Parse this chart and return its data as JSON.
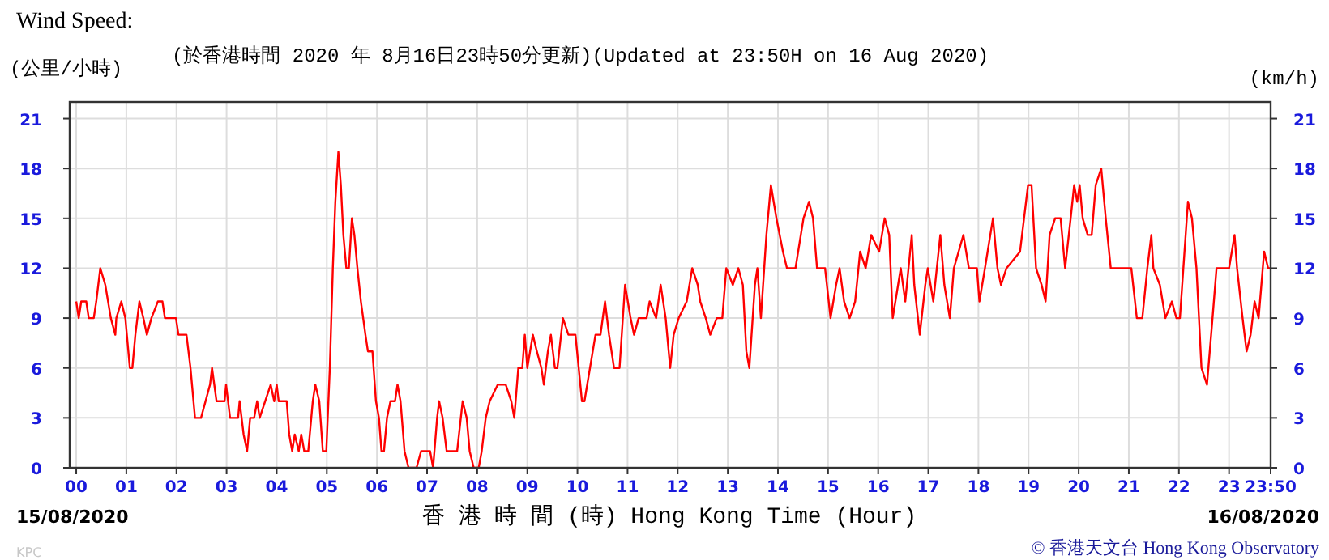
{
  "chart_data": {
    "type": "line",
    "title": "Wind Speed:",
    "subtitle": "(於香港時間 2020 年 8月16日23時50分更新)(Updated at 23:50H on 16 Aug 2020)",
    "ylabel": "(公里/小時)",
    "y2label": "(km/h)",
    "xlabel": "香 港 時 間 (時) Hong Kong Time (Hour)",
    "annotations": [
      "15/08/2020",
      "16/08/2020",
      "© 香港天文台 Hong Kong Observatory",
      "KPC"
    ],
    "xlim": [
      -0.13,
      23.83
    ],
    "ylim": [
      0,
      22
    ],
    "y2lim": [
      0,
      22
    ],
    "xticks": [
      {
        "value": 0,
        "label": "00"
      },
      {
        "value": 1,
        "label": "01"
      },
      {
        "value": 2,
        "label": "02"
      },
      {
        "value": 3,
        "label": "03"
      },
      {
        "value": 4,
        "label": "04"
      },
      {
        "value": 5,
        "label": "05"
      },
      {
        "value": 6,
        "label": "06"
      },
      {
        "value": 7,
        "label": "07"
      },
      {
        "value": 8,
        "label": "08"
      },
      {
        "value": 9,
        "label": "09"
      },
      10,
      11,
      12,
      13,
      14,
      15,
      16,
      17,
      18,
      19,
      20,
      21,
      22,
      23,
      {
        "value": 23.83,
        "label": "23:50"
      }
    ],
    "yticks": [
      0,
      3,
      6,
      9,
      12,
      15,
      18,
      21
    ],
    "y2ticks": [
      0,
      3,
      6,
      9,
      12,
      15,
      18,
      21
    ],
    "grid": true,
    "marker": "none",
    "line_style": "solid",
    "series": [
      {
        "color": "#ff0000",
        "x": [
          0,
          0.05,
          0.1,
          0.2,
          0.25,
          0.35,
          0.4,
          0.48,
          0.58,
          0.69,
          0.78,
          0.8,
          0.9,
          0.98,
          1.07,
          1.12,
          1.18,
          1.26,
          1.34,
          1.41,
          1.5,
          1.63,
          1.72,
          1.77,
          1.99,
          2.04,
          2.2,
          2.28,
          2.37,
          2.49,
          2.58,
          2.67,
          2.71,
          2.8,
          2.96,
          2.99,
          3.07,
          3.23,
          3.26,
          3.34,
          3.41,
          3.47,
          3.55,
          3.61,
          3.66,
          3.77,
          3.88,
          3.95,
          4.0,
          4.04,
          4.2,
          4.25,
          4.31,
          4.36,
          4.44,
          4.49,
          4.55,
          4.63,
          4.72,
          4.77,
          4.85,
          4.92,
          4.99,
          5.06,
          5.12,
          5.17,
          5.23,
          5.28,
          5.33,
          5.39,
          5.44,
          5.5,
          5.55,
          5.61,
          5.68,
          5.77,
          5.82,
          5.91,
          5.98,
          6.04,
          6.09,
          6.14,
          6.2,
          6.27,
          6.36,
          6.41,
          6.47,
          6.55,
          6.63,
          6.79,
          6.88,
          7.06,
          7.12,
          7.2,
          7.24,
          7.31,
          7.39,
          7.6,
          7.71,
          7.79,
          7.85,
          7.93,
          8.03,
          8.09,
          8.17,
          8.25,
          8.41,
          8.57,
          8.68,
          8.74,
          8.82,
          8.9,
          8.95,
          9.0,
          9.11,
          9.19,
          9.28,
          9.33,
          9.41,
          9.47,
          9.55,
          9.6,
          9.71,
          9.82,
          9.96,
          10.09,
          10.14,
          10.25,
          10.36,
          10.46,
          10.55,
          10.63,
          10.73,
          10.84,
          10.95,
          11.06,
          11.13,
          11.22,
          11.38,
          11.44,
          11.57,
          11.66,
          11.76,
          11.85,
          11.92,
          12.02,
          12.18,
          12.29,
          12.4,
          12.45,
          12.56,
          12.65,
          12.78,
          12.89,
          12.97,
          13.1,
          13.21,
          13.3,
          13.37,
          13.43,
          13.54,
          13.59,
          13.66,
          13.77,
          13.86,
          13.97,
          14.1,
          14.18,
          14.35,
          14.51,
          14.62,
          14.7,
          14.78,
          14.94,
          15.05,
          15.16,
          15.23,
          15.32,
          15.43,
          15.54,
          15.64,
          15.75,
          15.86,
          16.02,
          16.13,
          16.22,
          16.29,
          16.45,
          16.54,
          16.67,
          16.72,
          16.83,
          16.94,
          16.99,
          17.1,
          17.24,
          17.32,
          17.43,
          17.51,
          17.7,
          17.81,
          17.97,
          18.02,
          18.13,
          18.29,
          18.38,
          18.45,
          18.56,
          18.83,
          18.91,
          18.99,
          19.06,
          19.15,
          19.26,
          19.34,
          19.42,
          19.53,
          19.64,
          19.73,
          19.84,
          19.91,
          19.97,
          20.02,
          20.08,
          20.18,
          20.26,
          20.34,
          20.45,
          20.54,
          20.64,
          20.83,
          21.05,
          21.16,
          21.27,
          21.37,
          21.45,
          21.49,
          21.62,
          21.73,
          21.86,
          21.95,
          22.02,
          22.18,
          22.26,
          22.35,
          22.45,
          22.56,
          22.67,
          22.75,
          23.0,
          23.11,
          23.16,
          23.27,
          23.35,
          23.43,
          23.51,
          23.59,
          23.7,
          23.78,
          23.83
        ],
        "values": [
          10,
          9,
          10,
          10,
          9,
          9,
          10,
          12,
          11,
          9,
          8,
          9,
          10,
          9,
          6,
          6,
          8,
          10,
          9,
          8,
          9,
          10,
          10,
          9,
          9,
          8,
          8,
          6,
          3,
          3,
          4,
          5,
          6,
          4,
          4,
          5,
          3,
          3,
          4,
          2,
          1,
          3,
          3,
          4,
          3,
          4,
          5,
          4,
          5,
          4,
          4,
          2,
          1,
          2,
          1,
          2,
          1,
          1,
          4,
          5,
          4,
          1,
          1,
          6,
          12,
          16,
          19,
          17,
          14,
          12,
          12,
          15,
          14,
          12,
          10,
          8,
          7,
          7,
          4,
          3,
          1,
          1,
          3,
          4,
          4,
          5,
          4,
          1,
          0,
          0,
          1,
          1,
          0,
          3,
          4,
          3,
          1,
          1,
          4,
          3,
          1,
          0,
          0,
          1,
          3,
          4,
          5,
          5,
          4,
          3,
          6,
          6,
          8,
          6,
          8,
          7,
          6,
          5,
          7,
          8,
          6,
          6,
          9,
          8,
          8,
          4,
          4,
          6,
          8,
          8,
          10,
          8,
          6,
          6,
          11,
          9,
          8,
          9,
          9,
          10,
          9,
          11,
          9,
          6,
          8,
          9,
          10,
          12,
          11,
          10,
          9,
          8,
          9,
          9,
          12,
          11,
          12,
          11,
          7,
          6,
          11,
          12,
          9,
          14,
          17,
          15,
          13,
          12,
          12,
          15,
          16,
          15,
          12,
          12,
          9,
          11,
          12,
          10,
          9,
          10,
          13,
          12,
          14,
          13,
          15,
          14,
          9,
          12,
          10,
          14,
          11,
          8,
          11,
          12,
          10,
          14,
          11,
          9,
          12,
          14,
          12,
          12,
          10,
          12,
          15,
          12,
          11,
          12,
          13,
          15,
          17,
          17,
          12,
          11,
          10,
          14,
          15,
          15,
          12,
          15,
          17,
          16,
          17,
          15,
          14,
          14,
          17,
          18,
          15,
          12,
          12,
          12,
          9,
          9,
          12,
          14,
          12,
          11,
          9,
          10,
          9,
          9,
          16,
          15,
          12,
          6,
          5,
          9,
          12,
          12,
          14,
          12,
          9,
          7,
          8,
          10,
          9,
          13,
          12,
          12
        ]
      }
    ]
  }
}
